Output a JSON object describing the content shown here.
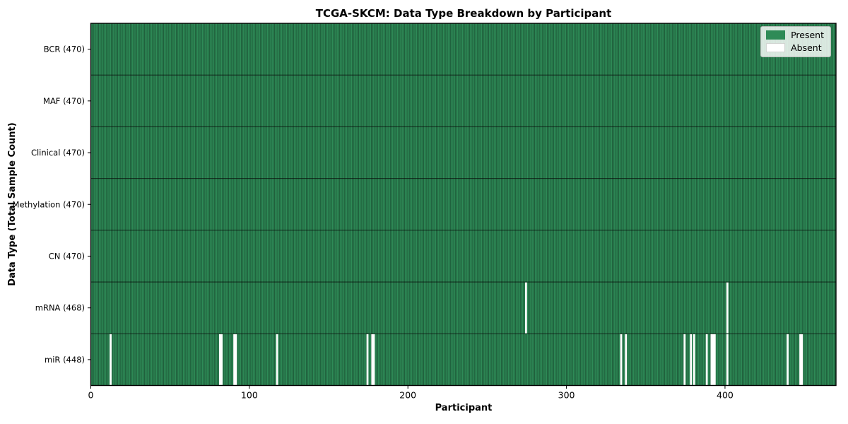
{
  "chart_data": {
    "type": "heatmap",
    "title": "TCGA-SKCM: Data Type Breakdown by Participant",
    "xlabel": "Participant",
    "ylabel": "Data Type (Total Sample Count)",
    "x_ticks": [
      0,
      100,
      200,
      300,
      400
    ],
    "xlim": [
      0,
      470
    ],
    "n_participants": 470,
    "grid": false,
    "present_color": "#2e8b57",
    "absent_color": "#ffffff",
    "bar_edge_color": "rgba(0,0,0,0.45)",
    "legend": {
      "position": "upper right",
      "entries": [
        {
          "label": "Present",
          "color": "#2e8b57"
        },
        {
          "label": "Absent",
          "color": "#ffffff"
        }
      ]
    },
    "rows": [
      {
        "label": "BCR (470)",
        "total": 470,
        "absent_participants": []
      },
      {
        "label": "MAF (470)",
        "total": 470,
        "absent_participants": []
      },
      {
        "label": "Clinical (470)",
        "total": 470,
        "absent_participants": []
      },
      {
        "label": "Methylation (470)",
        "total": 470,
        "absent_participants": []
      },
      {
        "label": "CN (470)",
        "total": 470,
        "absent_participants": []
      },
      {
        "label": "mRNA (468)",
        "total": 468,
        "absent_participants": [
          274,
          401
        ]
      },
      {
        "label": "miR (448)",
        "total": 448,
        "absent_participants": [
          12,
          81,
          82,
          90,
          91,
          117,
          174,
          177,
          178,
          334,
          337,
          374,
          378,
          380,
          388,
          391,
          392,
          393,
          401,
          439,
          447,
          448
        ]
      }
    ]
  }
}
